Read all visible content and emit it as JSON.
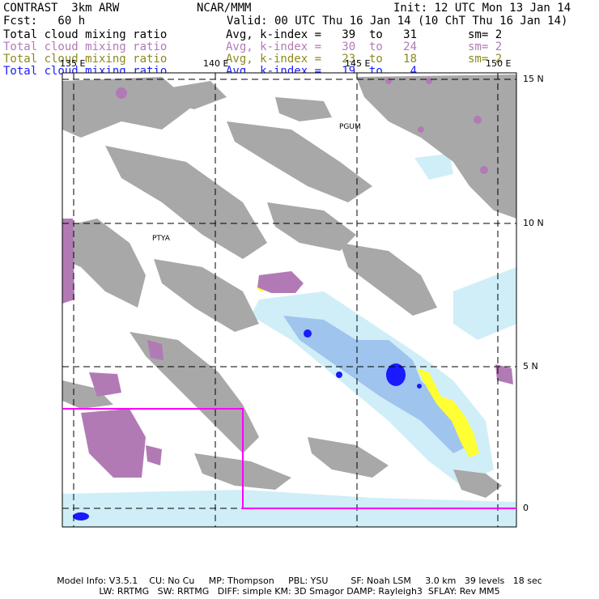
{
  "header": {
    "title_left": "CONTRAST  3km ARW",
    "title_center": "NCAR/MMM",
    "init": "Init: 12 UTC Mon 13 Jan 14",
    "fcst": "Fcst:   60 h",
    "valid": "Valid: 00 UTC Thu 16 Jan 14 (10 ChT Thu 16 Jan 14)"
  },
  "fields": [
    {
      "name": "Total cloud mixing ratio",
      "range": "Avg, k-index =   39  to   31",
      "sm": "sm= 2",
      "color": "#000000"
    },
    {
      "name": "Total cloud mixing ratio",
      "range": "Avg, k-index =   30  to   24",
      "sm": "sm= 2",
      "color": "#b27ab5"
    },
    {
      "name": "Total cloud mixing ratio",
      "range": "Avg, k-index =   23  to   18",
      "sm": "sm= 2",
      "color": "#8a8a1e"
    },
    {
      "name": "Total cloud mixing ratio",
      "range": "Avg, k-index =   19  to    4",
      "sm": "",
      "color": "#1a1aff"
    }
  ],
  "map": {
    "lon_labels": [
      "135 E",
      "140 E",
      "145 E",
      "150 E"
    ],
    "lat_labels": [
      "15 N",
      "10 N",
      "5 N",
      "0"
    ],
    "stations": [
      "PGUM",
      "PTYA"
    ],
    "colors": {
      "gray_cloud": "#a8a8a8",
      "violet_cloud": "#b27ab5",
      "light_blue": "#cfeef8",
      "mid_blue": "#9fc4ee",
      "deep_blue": "#1a1aff",
      "yellow": "#ffff33",
      "domain_box": "#ff00ff"
    }
  },
  "footer": {
    "line1": "Model Info: V3.5.1    CU: No Cu     MP: Thompson     PBL: YSU        SF: Noah LSM     3.0 km   39 levels   18 sec",
    "line2": "LW: RRTMG   SW: RRTMG   DIFF: simple KM: 3D Smagor DAMP: Rayleigh3  SFLAY: Rev MM5"
  }
}
